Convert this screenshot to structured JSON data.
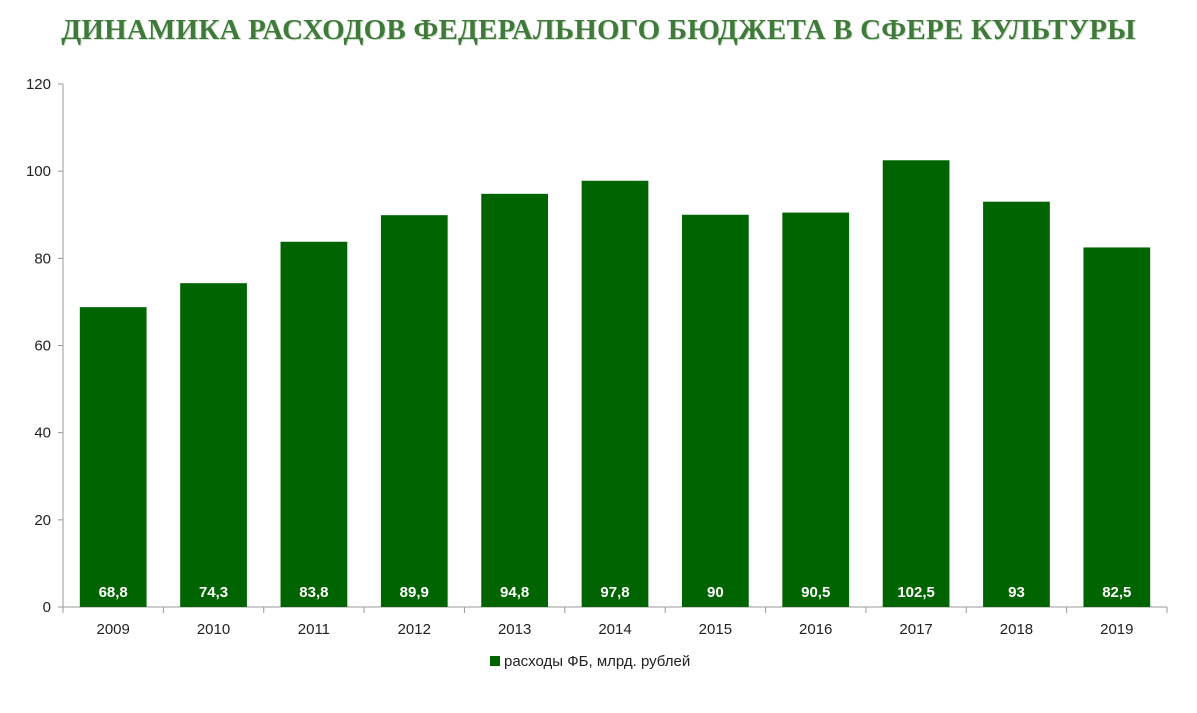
{
  "page": {
    "title": "ДИНАМИКА РАСХОДОВ ФЕДЕРАЛЬНОГО БЮДЖЕТА В СФЕРЕ КУЛЬТУРЫ"
  },
  "colors": {
    "bar": "#006400",
    "title": "#3f7a3a",
    "axis": "#999999",
    "bar_label": "#ffffff"
  },
  "chart_data": {
    "type": "bar",
    "title": "ДИНАМИКА РАСХОДОВ ФЕДЕРАЛЬНОГО БЮДЖЕТА В СФЕРЕ КУЛЬТУРЫ",
    "xlabel": "",
    "ylabel": "",
    "categories": [
      "2009",
      "2010",
      "2011",
      "2012",
      "2013",
      "2014",
      "2015",
      "2016",
      "2017",
      "2018",
      "2019"
    ],
    "series": [
      {
        "name": "расходы ФБ, млрд. рублей",
        "values": [
          68.8,
          74.3,
          83.8,
          89.9,
          94.8,
          97.8,
          90,
          90.5,
          102.5,
          93,
          82.5
        ],
        "labels": [
          "68,8",
          "74,3",
          "83,8",
          "89,9",
          "94,8",
          "97,8",
          "90",
          "90,5",
          "102,5",
          "93",
          "82,5"
        ]
      }
    ],
    "ylim": [
      0,
      120
    ],
    "yticks": [
      "0",
      "20",
      "40",
      "60",
      "80",
      "100",
      "120"
    ],
    "grid": false,
    "legend_position": "bottom-center"
  }
}
